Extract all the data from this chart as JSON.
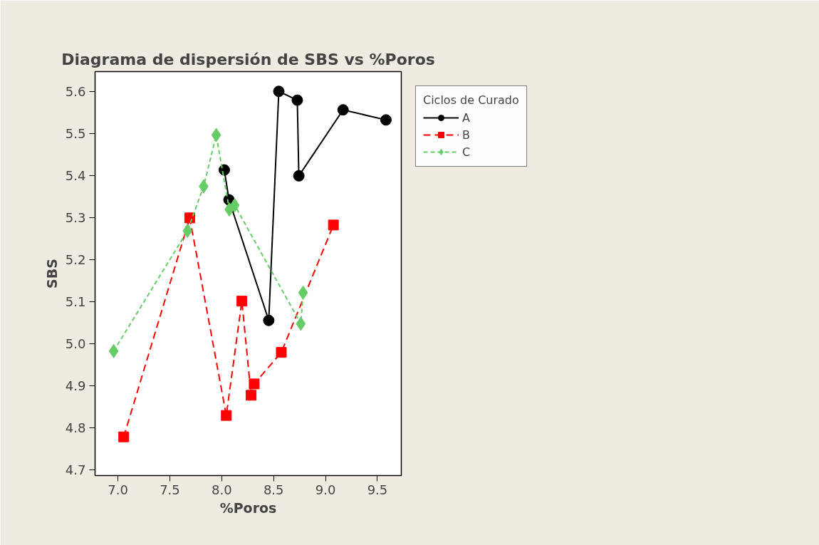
{
  "chart_data": {
    "type": "line",
    "title": "Diagrama de dispersión de SBS vs %Poros",
    "xlabel": "%Poros",
    "ylabel": "SBS",
    "legend_title": "Ciclos de Curado",
    "series": [
      {
        "name": "A",
        "color": "#000000",
        "marker": "circle",
        "line_style": "solid",
        "x": [
          8.025,
          8.07,
          8.453,
          8.55,
          8.728,
          8.743,
          9.169,
          9.582
        ],
        "values": [
          5.413,
          5.342,
          5.055,
          5.6,
          5.579,
          5.399,
          5.556,
          5.532
        ]
      },
      {
        "name": "B",
        "color": "#ff0000",
        "marker": "square",
        "line_style": "dashed",
        "x": [
          7.056,
          7.692,
          8.044,
          8.194,
          8.283,
          8.313,
          8.574,
          9.076
        ],
        "values": [
          4.778,
          5.299,
          4.829,
          5.101,
          4.877,
          4.904,
          4.979,
          5.282
        ]
      },
      {
        "name": "C",
        "color": "#66cc66",
        "marker": "diamond",
        "line_style": "dashed",
        "x": [
          6.959,
          7.67,
          7.826,
          7.947,
          8.073,
          8.125,
          8.762,
          8.784
        ],
        "values": [
          4.982,
          5.268,
          5.374,
          5.496,
          5.319,
          5.329,
          5.047,
          5.121
        ]
      }
    ],
    "xlim": [
      6.78,
      9.73
    ],
    "xticks": [
      {
        "value": 7,
        "label": "7.0"
      },
      7.5,
      {
        "value": 8,
        "label": "8.0"
      },
      8.5,
      {
        "value": 9,
        "label": "9.0"
      },
      9.5
    ],
    "ylim": [
      4.686,
      5.647
    ],
    "yticks": [
      4.7,
      4.8,
      4.9,
      {
        "value": 5,
        "label": "5.0"
      },
      5.1,
      5.2,
      5.3,
      5.4,
      5.5,
      5.6
    ],
    "grid": false,
    "legend": "right"
  }
}
